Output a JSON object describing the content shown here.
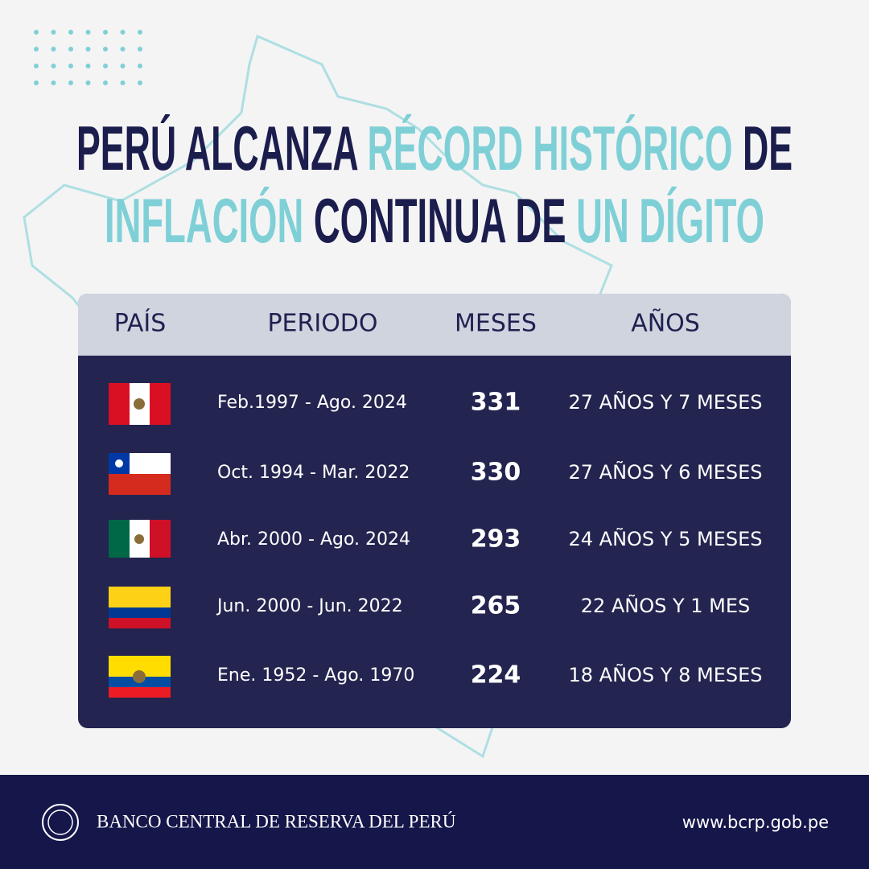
{
  "title": {
    "line1": [
      "PERÚ ALCANZA",
      "RÉCORD HISTÓRICO",
      "DE"
    ],
    "line2": [
      "INFLACIÓN",
      "CONTINUA DE",
      "UN DÍGITO"
    ]
  },
  "table": {
    "headers": [
      "PAÍS",
      "PERIODO",
      "MESES",
      "AÑOS"
    ],
    "rows": [
      {
        "periodo": "Feb.1997 - Ago. 2024",
        "meses": 331,
        "anos": "27 AÑOS Y 7 MESES"
      },
      {
        "periodo": "Oct. 1994 - Mar. 2022",
        "meses": 330,
        "anos": "27 AÑOS Y 6 MESES"
      },
      {
        "periodo": "Abr. 2000 - Ago. 2024",
        "meses": 293,
        "anos": "24 AÑOS Y 5 MESES"
      },
      {
        "periodo": "Jun. 2000 - Jun. 2022",
        "meses": 265,
        "anos": "22 AÑOS Y 1 MES"
      },
      {
        "periodo": "Ene. 1952 - Ago. 1970",
        "meses": 224,
        "anos": "18 AÑOS Y 8 MESES"
      }
    ]
  },
  "footer": {
    "institution": "BANCO CENTRAL DE RESERVA DEL PERÚ",
    "url": "www.bcrp.gob.pe"
  }
}
